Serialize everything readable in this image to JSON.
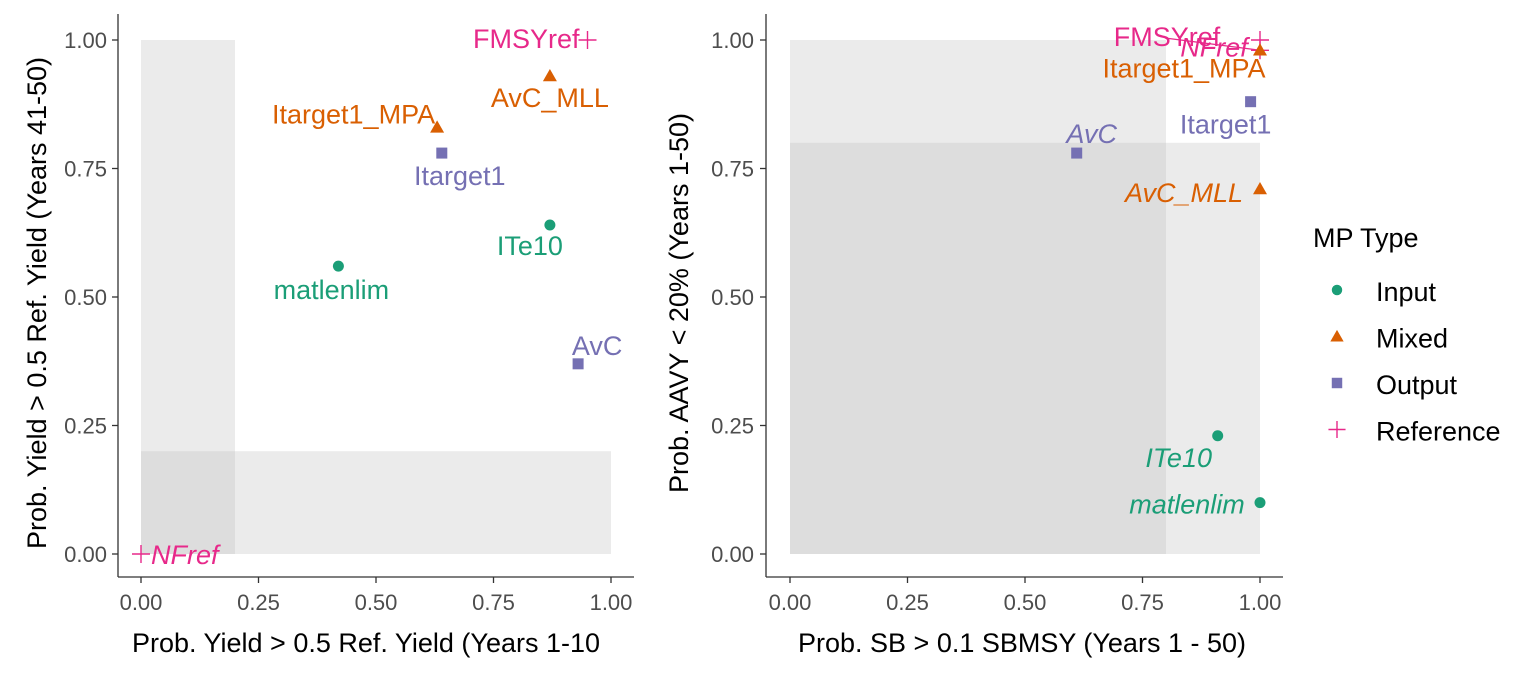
{
  "colors": {
    "Input": "#1b9e77",
    "Mixed": "#d95f02",
    "Output": "#7570b3",
    "Reference": "#e7298a",
    "shade": "#bdbdbd",
    "axis": "#333333",
    "tick_text": "#4d4d4d"
  },
  "legend": {
    "title": "MP Type",
    "placement": "right",
    "items": [
      {
        "label": "Input",
        "shape": "circle"
      },
      {
        "label": "Mixed",
        "shape": "triangle"
      },
      {
        "label": "Output",
        "shape": "square"
      },
      {
        "label": "Reference",
        "shape": "plus"
      }
    ]
  },
  "chart_data": [
    {
      "type": "scatter",
      "xlabel": "Prob. Yield > 0.5 Ref. Yield (Years 1-10",
      "ylabel": "Prob. Yield > 0.5 Ref. Yield (Years 41-50)",
      "xlim": [
        0,
        1
      ],
      "ylim": [
        0,
        1
      ],
      "xticks": [
        "0.00",
        "0.25",
        "0.50",
        "0.75",
        "1.00"
      ],
      "yticks": [
        "0.00",
        "0.25",
        "0.50",
        "0.75",
        "1.00"
      ],
      "grid": false,
      "shaded_regions": [
        {
          "x": [
            0,
            0.2
          ],
          "y": [
            0,
            1
          ]
        },
        {
          "x": [
            0,
            1
          ],
          "y": [
            0,
            0.2
          ]
        }
      ],
      "points": [
        {
          "label": "FMSYref",
          "type": "Reference",
          "x": 0.95,
          "y": 1.0,
          "italic": false
        },
        {
          "label": "NFref",
          "type": "Reference",
          "x": 0.0,
          "y": 0.0,
          "italic": true
        },
        {
          "label": "AvC_MLL",
          "type": "Mixed",
          "x": 0.87,
          "y": 0.93,
          "italic": false
        },
        {
          "label": "Itarget1_MPA",
          "type": "Mixed",
          "x": 0.63,
          "y": 0.83,
          "italic": false
        },
        {
          "label": "Itarget1",
          "type": "Output",
          "x": 0.64,
          "y": 0.78,
          "italic": false
        },
        {
          "label": "ITe10",
          "type": "Input",
          "x": 0.87,
          "y": 0.64,
          "italic": false
        },
        {
          "label": "matlenlim",
          "type": "Input",
          "x": 0.42,
          "y": 0.56,
          "italic": false
        },
        {
          "label": "AvC",
          "type": "Output",
          "x": 0.93,
          "y": 0.37,
          "italic": false
        }
      ]
    },
    {
      "type": "scatter",
      "xlabel": "Prob. SB > 0.1 SBMSY (Years 1 - 50)",
      "ylabel": "Prob. AAVY < 20% (Years 1-50)",
      "xlim": [
        0,
        1
      ],
      "ylim": [
        0,
        1
      ],
      "xticks": [
        "0.00",
        "0.25",
        "0.50",
        "0.75",
        "1.00"
      ],
      "yticks": [
        "0.00",
        "0.25",
        "0.50",
        "0.75",
        "1.00"
      ],
      "grid": false,
      "shaded_regions": [
        {
          "x": [
            0,
            0.8
          ],
          "y": [
            0,
            1
          ]
        },
        {
          "x": [
            0,
            1
          ],
          "y": [
            0,
            0.8
          ]
        }
      ],
      "points": [
        {
          "label": "FMSYref",
          "type": "Reference",
          "x": 1.0,
          "y": 1.0,
          "italic": false
        },
        {
          "label": "NFref",
          "type": "Reference",
          "x": 1.0,
          "y": 0.98,
          "italic": true
        },
        {
          "label": "Itarget1_MPA",
          "type": "Mixed",
          "x": 1.0,
          "y": 0.98,
          "italic": false
        },
        {
          "label": "Itarget1",
          "type": "Output",
          "x": 0.98,
          "y": 0.88,
          "italic": false
        },
        {
          "label": "AvC",
          "type": "Output",
          "x": 0.61,
          "y": 0.78,
          "italic": true
        },
        {
          "label": "AvC_MLL",
          "type": "Mixed",
          "x": 1.0,
          "y": 0.71,
          "italic": true
        },
        {
          "label": "ITe10",
          "type": "Input",
          "x": 0.91,
          "y": 0.23,
          "italic": true
        },
        {
          "label": "matlenlim",
          "type": "Input",
          "x": 1.0,
          "y": 0.1,
          "italic": true
        }
      ]
    }
  ]
}
